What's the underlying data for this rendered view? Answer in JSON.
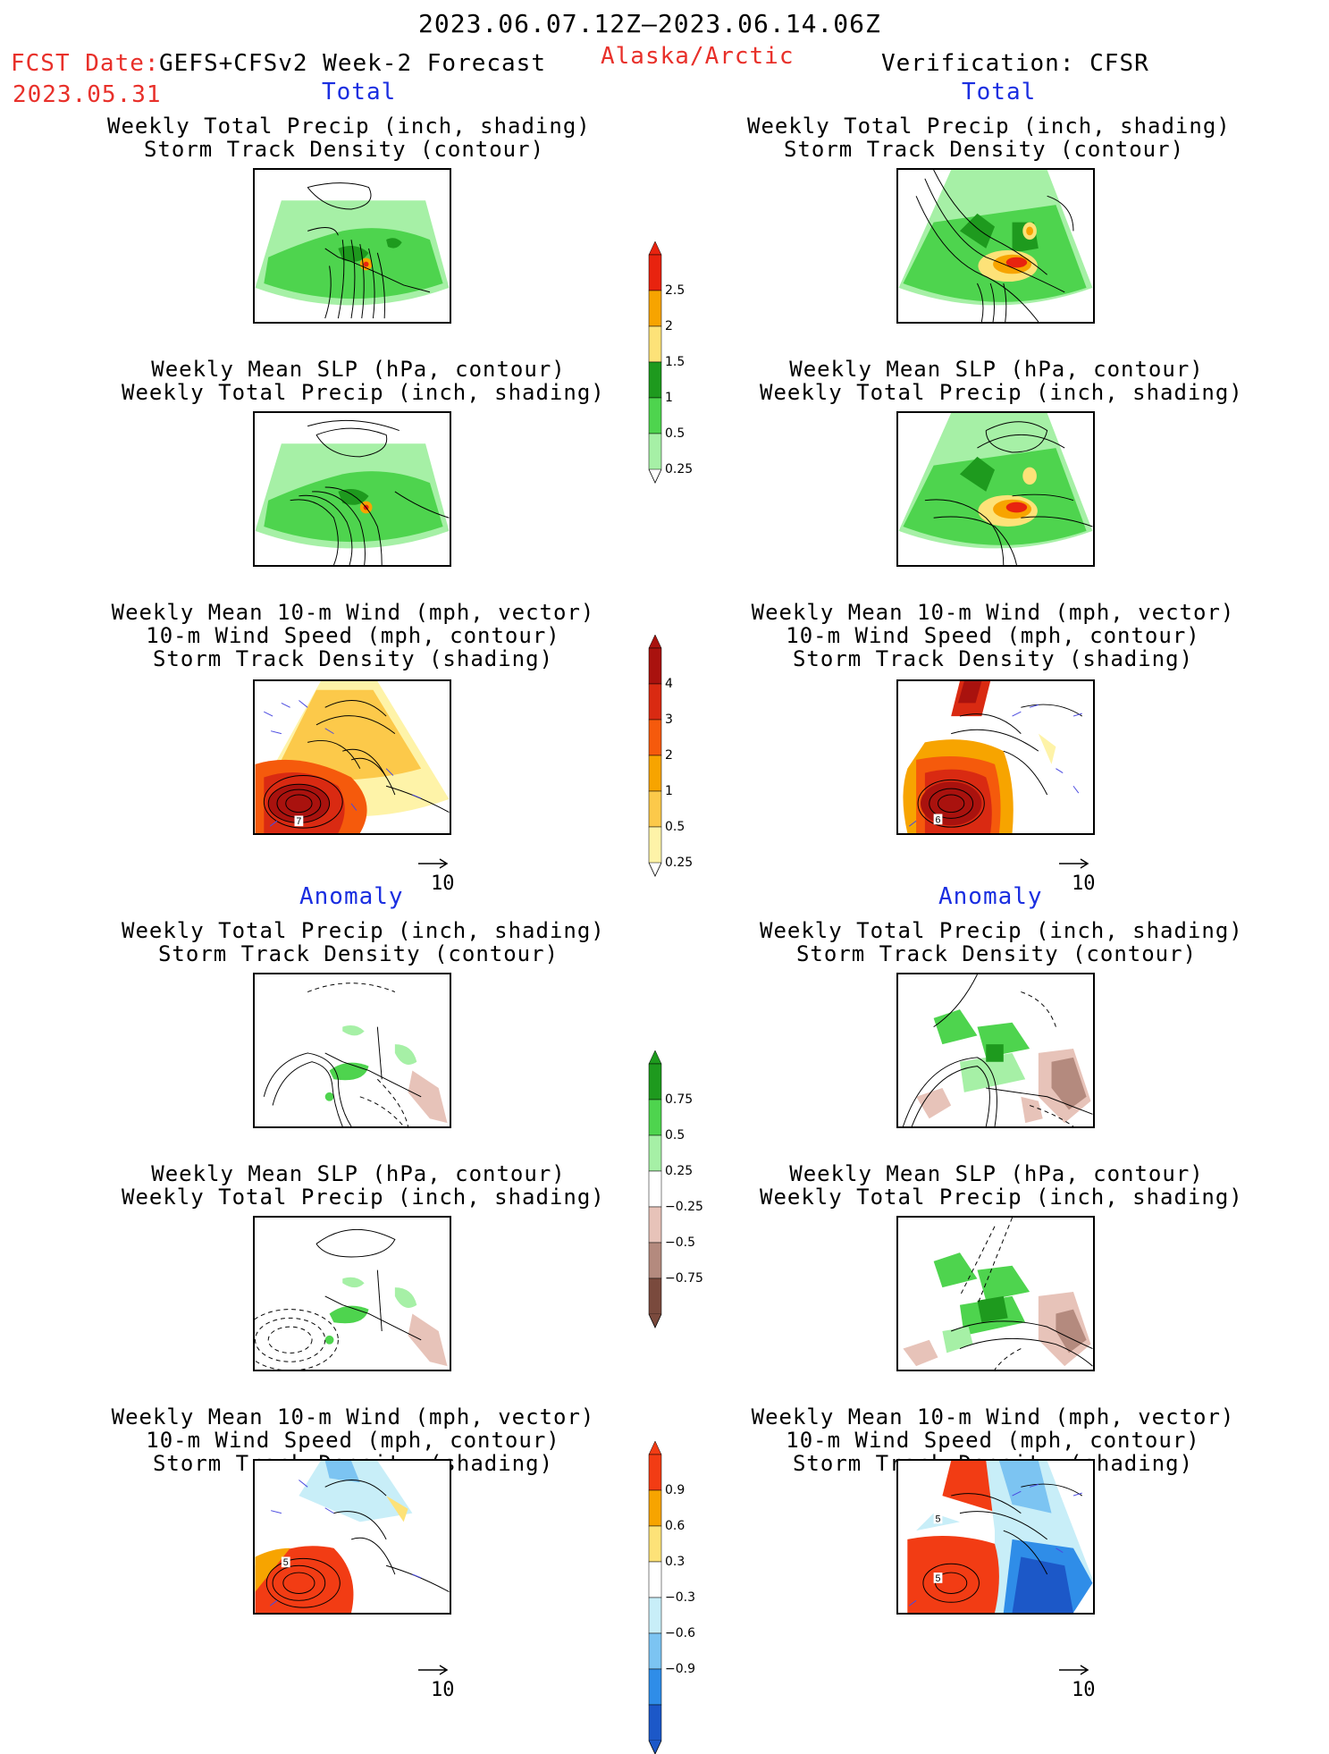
{
  "header": {
    "date_range": "2023.06.07.12Z–2023.06.14.06Z",
    "fcst_label": "FCST Date:",
    "forecast_name": "GEFS+CFSv2 Week-2 Forecast",
    "fcst_date": "2023.05.31",
    "region": "Alaska/Arctic",
    "verification": "Verification: CFSR"
  },
  "sections": {
    "total": "Total",
    "anomaly": "Anomaly"
  },
  "panels": {
    "precip_storm": [
      "Weekly Total Precip (inch, shading)",
      "Storm Track Density (contour)"
    ],
    "slp_precip": [
      "Weekly Mean SLP (hPa, contour)",
      "Weekly Total Precip (inch, shading)"
    ],
    "wind_storm": [
      "Weekly Mean 10-m Wind (mph, vector)",
      "10-m Wind Speed (mph, contour)",
      "Storm Track Density (shading)"
    ]
  },
  "map_labels": {
    "total_wind_fcst": "7",
    "total_wind_verif": "6",
    "anom_wind_fcst": "5",
    "anom_wind_verif_1": "5",
    "anom_wind_verif_2": "5"
  },
  "vector_ref": "10",
  "colorbars": {
    "total_precip": {
      "ticks": [
        "2.5",
        "2",
        "1.5",
        "1",
        "0.5",
        "0.25"
      ],
      "colors": [
        "#e8230f",
        "#f7a400",
        "#fde278",
        "#1e9a1e",
        "#4ed44e",
        "#a6f0a6"
      ]
    },
    "total_storm": {
      "ticks": [
        "4",
        "3",
        "2",
        "1",
        "0.5",
        "0.25"
      ],
      "colors": [
        "#a9120e",
        "#d92a12",
        "#f55a0c",
        "#f7a400",
        "#fcc94a",
        "#fef3a8"
      ]
    },
    "anom_precip": {
      "ticks": [
        "0.75",
        "0.5",
        "0.25",
        "−0.25",
        "−0.5",
        "−0.75"
      ],
      "colors": [
        "#1e9a1e",
        "#4ed44e",
        "#a6f0a6",
        "#ffffff",
        "#e7c3b9",
        "#b48a7e",
        "#7a4a3d"
      ]
    },
    "anom_storm": {
      "ticks": [
        "0.9",
        "0.6",
        "0.3",
        "−0.3",
        "−0.6",
        "−0.9"
      ],
      "colors": [
        "#f23c14",
        "#f7a400",
        "#fde278",
        "#ffffff",
        "#c8eef8",
        "#7cc4f2",
        "#2f8de8",
        "#1c58c8"
      ]
    }
  }
}
